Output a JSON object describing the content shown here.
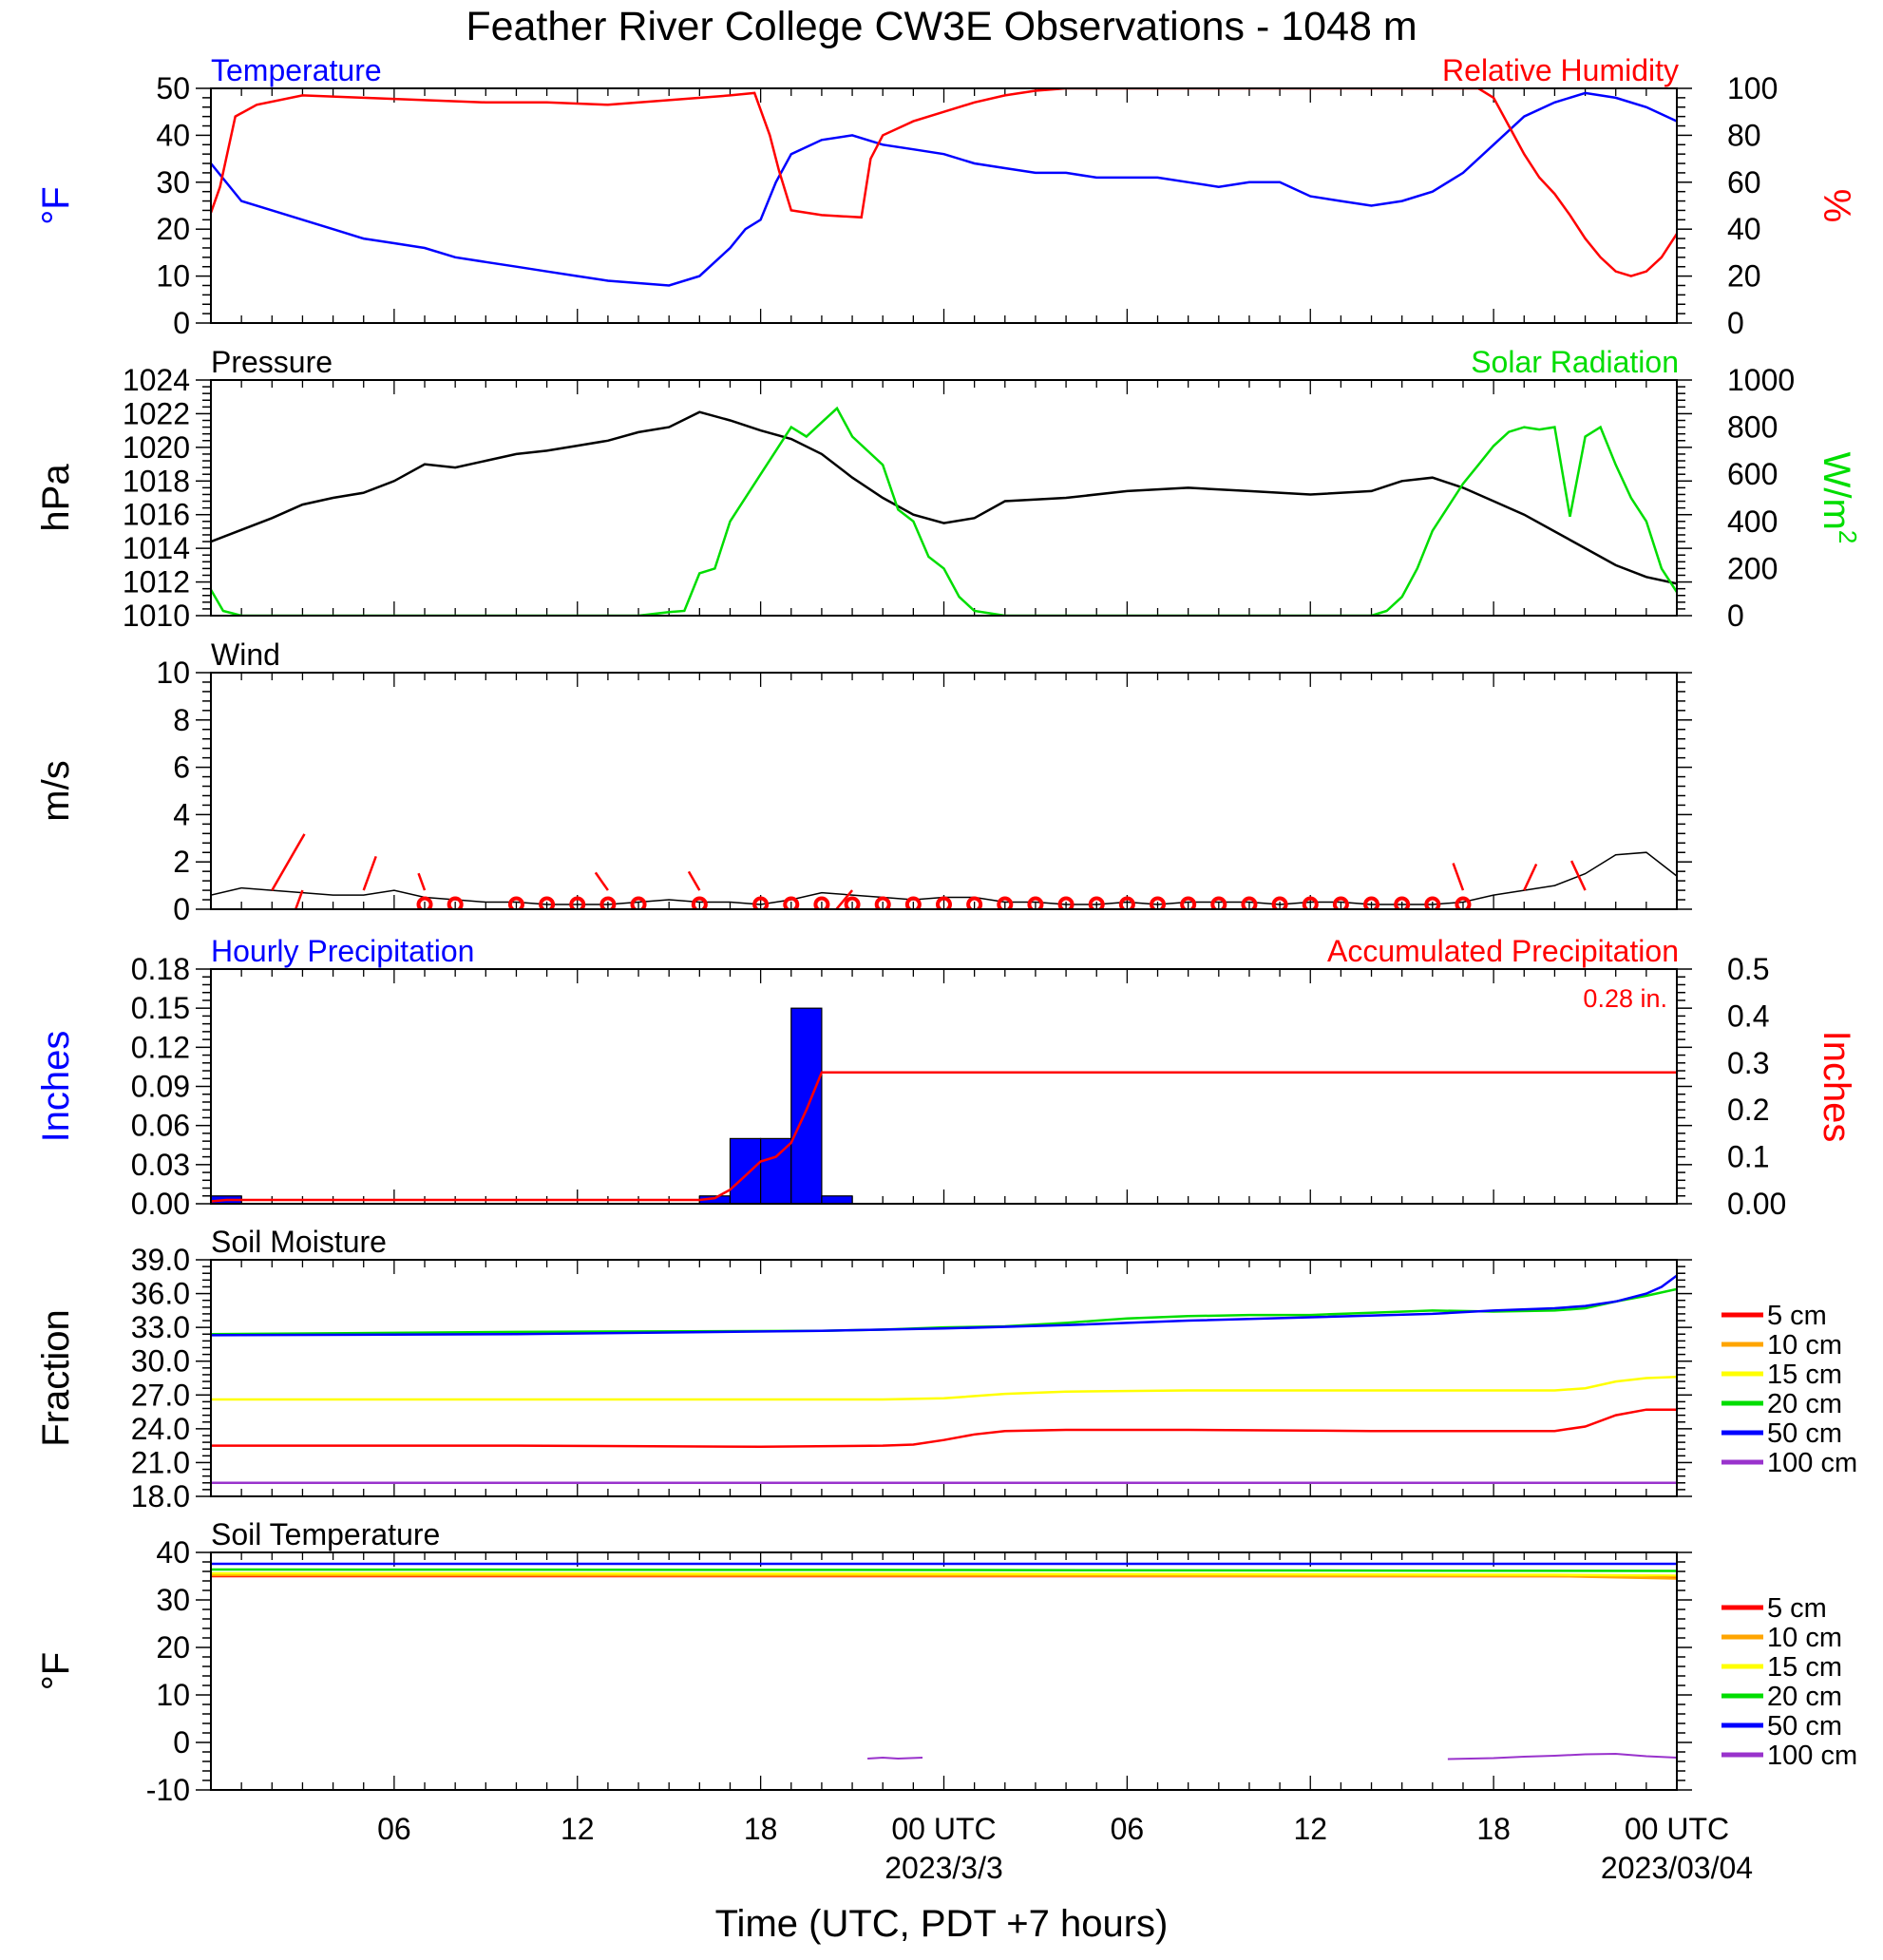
{
  "title": "Feather River College CW3E Observations - 1048 m",
  "xlabel": "Time (UTC, PDT +7 hours)",
  "x_ticks": [
    "06",
    "12",
    "18",
    "00 UTC",
    "06",
    "12",
    "18",
    "00 UTC"
  ],
  "x_dates": [
    "2023/3/3",
    "2023/03/04"
  ],
  "colors": {
    "blue": "#0000ff",
    "red": "#ff0000",
    "green": "#00dd00",
    "black": "#000000",
    "orange": "#ffa500",
    "yellow": "#ffff00",
    "purple": "#9933cc"
  },
  "chart_data": [
    {
      "id": "temp_rh",
      "type": "line",
      "title_left": "Temperature",
      "title_right": "Relative Humidity",
      "ylabel_left": "°F",
      "ylabel_right": "%",
      "ylim_left": [
        0,
        50
      ],
      "ylim_right": [
        0,
        100
      ],
      "yticks_left": [
        "0",
        "10",
        "20",
        "30",
        "40",
        "50"
      ],
      "yticks_right": [
        "0",
        "20",
        "40",
        "60",
        "80",
        "100"
      ],
      "series": [
        {
          "name": "Temperature",
          "color": "blue",
          "axis": "left",
          "x": [
            0,
            1,
            2,
            3,
            4,
            5,
            6,
            7,
            8,
            9,
            10,
            11,
            12,
            13,
            14,
            15,
            16,
            17,
            17.5,
            18,
            18.5,
            19,
            20,
            21,
            22,
            23,
            24,
            25,
            26,
            27,
            28,
            29,
            30,
            31,
            32,
            33,
            34,
            35,
            36,
            37,
            38,
            39,
            40,
            41,
            42,
            43,
            44,
            45,
            46,
            47,
            48
          ],
          "y": [
            34,
            26,
            24,
            22,
            20,
            18,
            17,
            16,
            14,
            13,
            12,
            11,
            10,
            9,
            8.5,
            8,
            10,
            16,
            20,
            22,
            30,
            36,
            39,
            40,
            38,
            37,
            36,
            34,
            33,
            32,
            32,
            31,
            31,
            31,
            30,
            29,
            30,
            30,
            27,
            26,
            25,
            26,
            28,
            32,
            38,
            44,
            47,
            49,
            48,
            46,
            43
          ]
        },
        {
          "name": "Relative Humidity",
          "color": "red",
          "axis": "right",
          "x": [
            0,
            0.3,
            0.8,
            1.5,
            3,
            5,
            7,
            9,
            11,
            13,
            15,
            17,
            17.8,
            18.3,
            18.6,
            19,
            20,
            21.3,
            21.6,
            22,
            23,
            24,
            25,
            26,
            27,
            28,
            30,
            34,
            38,
            41.5,
            42,
            42.5,
            43,
            43.5,
            44,
            44.5,
            45,
            45.5,
            46,
            46.5,
            47,
            47.5,
            48
          ],
          "y": [
            47,
            58,
            88,
            93,
            97,
            96,
            95,
            94,
            94,
            93,
            95,
            97,
            98,
            80,
            65,
            48,
            46,
            45,
            70,
            80,
            86,
            90,
            94,
            97,
            99,
            100,
            100,
            100,
            100,
            100,
            96,
            84,
            72,
            62,
            55,
            46,
            36,
            28,
            22,
            20,
            22,
            28,
            38
          ]
        }
      ]
    },
    {
      "id": "pressure_solar",
      "type": "line",
      "title_left": "Pressure",
      "title_right": "Solar Radiation",
      "ylabel_left": "hPa",
      "ylabel_right": "W/m",
      "ylabel_right_sup": "2",
      "ylim_left": [
        1010,
        1024
      ],
      "ylim_right": [
        0,
        1000
      ],
      "yticks_left": [
        "1010",
        "1012",
        "1014",
        "1016",
        "1018",
        "1020",
        "1022",
        "1024"
      ],
      "yticks_right": [
        "0",
        "200",
        "400",
        "600",
        "800",
        "1000"
      ],
      "series": [
        {
          "name": "Pressure",
          "color": "black",
          "axis": "left",
          "x": [
            0,
            2,
            3,
            4,
            5,
            6,
            7,
            8,
            9,
            10,
            11,
            12,
            13,
            14,
            15,
            16,
            17,
            18,
            19,
            20,
            21,
            22,
            23,
            24,
            25,
            26,
            28,
            30,
            32,
            34,
            36,
            38,
            39,
            40,
            41,
            42,
            43,
            44,
            45,
            46,
            47,
            48
          ],
          "y": [
            1014.4,
            1015.8,
            1016.6,
            1017.0,
            1017.3,
            1018.0,
            1019.0,
            1018.8,
            1019.2,
            1019.6,
            1019.8,
            1020.1,
            1020.4,
            1020.9,
            1021.2,
            1022.1,
            1021.6,
            1021.0,
            1020.5,
            1019.6,
            1018.2,
            1017.0,
            1016.0,
            1015.5,
            1015.8,
            1016.8,
            1017.0,
            1017.4,
            1017.6,
            1017.4,
            1017.2,
            1017.4,
            1018.0,
            1018.2,
            1017.6,
            1016.8,
            1016.0,
            1015.0,
            1014.0,
            1013.0,
            1012.3,
            1011.9
          ]
        },
        {
          "name": "Solar Radiation",
          "color": "green",
          "axis": "right",
          "x": [
            0,
            0.4,
            1,
            14,
            15,
            15.5,
            16,
            16.5,
            17,
            18,
            18.5,
            19,
            19.5,
            20,
            20.5,
            21,
            22,
            22.5,
            23,
            23.5,
            24,
            24.5,
            25,
            26,
            38,
            38.5,
            39,
            39.5,
            40,
            41,
            41.5,
            42,
            42.5,
            43,
            43.5,
            44,
            44.5,
            45,
            45.5,
            46,
            46.5,
            47,
            47.5,
            48
          ],
          "y": [
            110,
            20,
            0,
            0,
            15,
            20,
            180,
            200,
            400,
            600,
            700,
            800,
            760,
            820,
            880,
            760,
            640,
            450,
            400,
            250,
            200,
            80,
            20,
            0,
            0,
            20,
            80,
            200,
            360,
            560,
            640,
            720,
            780,
            800,
            790,
            800,
            420,
            760,
            800,
            640,
            500,
            400,
            200,
            100
          ]
        }
      ]
    },
    {
      "id": "wind",
      "type": "line",
      "title_left": "Wind",
      "ylabel_left": "m/s",
      "ylim_left": [
        0,
        10
      ],
      "yticks_left": [
        "0",
        "2",
        "4",
        "6",
        "8",
        "10"
      ],
      "series": [
        {
          "name": "Wind",
          "color": "black",
          "axis": "left",
          "x": [
            0,
            1,
            2,
            3,
            4,
            5,
            6,
            7,
            8,
            9,
            10,
            11,
            12,
            13,
            14,
            15,
            16,
            17,
            18,
            19,
            20,
            21,
            22,
            23,
            24,
            25,
            26,
            27,
            28,
            29,
            30,
            31,
            32,
            33,
            34,
            35,
            36,
            37,
            38,
            39,
            40,
            41,
            42,
            43,
            44,
            45,
            46,
            47,
            48
          ],
          "y": [
            0.6,
            0.9,
            0.8,
            0.7,
            0.6,
            0.6,
            0.8,
            0.5,
            0.4,
            0.3,
            0.3,
            0.2,
            0.2,
            0.2,
            0.3,
            0.4,
            0.3,
            0.3,
            0.2,
            0.4,
            0.7,
            0.6,
            0.5,
            0.4,
            0.5,
            0.5,
            0.3,
            0.3,
            0.2,
            0.2,
            0.3,
            0.2,
            0.3,
            0.3,
            0.3,
            0.2,
            0.3,
            0.3,
            0.2,
            0.2,
            0.2,
            0.3,
            0.6,
            0.8,
            1.0,
            1.5,
            2.3,
            2.4,
            1.4
          ]
        }
      ],
      "barbs": [
        {
          "x": 2.0,
          "len": 1.8,
          "dir": 60
        },
        {
          "x": 3.0,
          "len": 1.0,
          "dir": 250
        },
        {
          "x": 5.0,
          "len": 1.0,
          "dir": 70
        },
        {
          "x": 7.0,
          "len": 0.5,
          "dir": 110
        },
        {
          "x": 13.0,
          "len": 0.6,
          "dir": 125
        },
        {
          "x": 16.0,
          "len": 0.6,
          "dir": 120
        },
        {
          "x": 21.0,
          "len": 1.0,
          "dir": 230
        },
        {
          "x": 41.0,
          "len": 0.8,
          "dir": 110
        },
        {
          "x": 43.0,
          "len": 0.8,
          "dir": 65
        },
        {
          "x": 45.0,
          "len": 0.9,
          "dir": 115
        }
      ],
      "calm_markers_x": [
        7,
        8,
        10,
        11,
        12,
        13,
        14,
        16,
        18,
        19,
        20,
        21,
        22,
        23,
        24,
        25,
        26,
        27,
        28,
        29,
        30,
        31,
        32,
        33,
        34,
        35,
        36,
        37,
        38,
        39,
        40,
        41
      ]
    },
    {
      "id": "precip",
      "type": "bar",
      "title_left": "Hourly Precipitation",
      "title_right": "Accumulated Precipitation",
      "annotation": "0.28 in.",
      "ylabel_left": "Inches",
      "ylabel_right": "Inches",
      "ylim_left": [
        0,
        0.18
      ],
      "ylim_right": [
        0,
        0.5
      ],
      "yticks_left": [
        "0.00",
        "0.03",
        "0.06",
        "0.09",
        "0.12",
        "0.15",
        "0.18"
      ],
      "yticks_right": [
        "0.00",
        "0.1",
        "0.2",
        "0.3",
        "0.4",
        "0.5"
      ],
      "hourly": {
        "x_start": [
          0,
          16,
          17,
          18,
          19,
          20
        ],
        "values": [
          0.006,
          0.006,
          0.05,
          0.05,
          0.15,
          0.006
        ]
      },
      "accumulated": {
        "x": [
          0,
          0.5,
          1,
          16,
          16.5,
          17,
          17.5,
          18,
          18.5,
          19,
          19.5,
          20,
          48
        ],
        "y": [
          0.005,
          0.008,
          0.008,
          0.008,
          0.012,
          0.03,
          0.06,
          0.09,
          0.1,
          0.13,
          0.2,
          0.28,
          0.28
        ]
      }
    },
    {
      "id": "soil_moisture",
      "type": "line",
      "title_left": "Soil Moisture",
      "ylabel_left": "Fraction",
      "ylim_left": [
        18,
        39
      ],
      "yticks_left": [
        "18.0",
        "21.0",
        "24.0",
        "27.0",
        "30.0",
        "33.0",
        "36.0",
        "39.0"
      ],
      "legend": [
        "5 cm",
        "10 cm",
        "15 cm",
        "20 cm",
        "50 cm",
        "100 cm"
      ],
      "series": [
        {
          "name": "5 cm",
          "color": "red",
          "x": [
            0,
            10,
            18,
            22,
            23,
            24,
            25,
            26,
            28,
            32,
            38,
            44,
            45,
            46,
            47,
            48
          ],
          "y": [
            22.5,
            22.5,
            22.4,
            22.5,
            22.6,
            23.0,
            23.5,
            23.8,
            23.9,
            23.9,
            23.8,
            23.8,
            24.2,
            25.2,
            25.7,
            25.7
          ]
        },
        {
          "name": "10 cm",
          "color": "orange",
          "x": [
            0,
            48
          ],
          "y": [
            null,
            null
          ]
        },
        {
          "name": "15 cm",
          "color": "yellow",
          "x": [
            0,
            10,
            20,
            22,
            24,
            26,
            28,
            32,
            38,
            44,
            45,
            46,
            47,
            48
          ],
          "y": [
            26.6,
            26.6,
            26.6,
            26.6,
            26.7,
            27.1,
            27.3,
            27.4,
            27.4,
            27.4,
            27.6,
            28.2,
            28.5,
            28.6
          ]
        },
        {
          "name": "20 cm",
          "color": "green",
          "x": [
            0,
            10,
            20,
            22,
            24,
            26,
            28,
            30,
            32,
            34,
            36,
            38,
            40,
            42,
            44,
            45,
            46,
            47,
            48
          ],
          "y": [
            32.4,
            32.6,
            32.7,
            32.8,
            33.0,
            33.1,
            33.4,
            33.8,
            34.0,
            34.1,
            34.1,
            34.3,
            34.5,
            34.4,
            34.5,
            34.7,
            35.3,
            35.8,
            36.4
          ]
        },
        {
          "name": "50 cm",
          "color": "blue",
          "x": [
            0,
            10,
            20,
            24,
            28,
            32,
            36,
            40,
            42,
            44,
            45,
            46,
            47,
            47.5,
            48
          ],
          "y": [
            32.3,
            32.4,
            32.7,
            32.9,
            33.2,
            33.6,
            33.9,
            34.2,
            34.5,
            34.7,
            34.9,
            35.3,
            36.0,
            36.6,
            37.6
          ]
        },
        {
          "name": "100 cm",
          "color": "purple",
          "x": [
            0,
            20,
            24,
            28,
            32,
            40,
            48
          ],
          "y": [
            19.2,
            19.2,
            19.2,
            19.2,
            19.2,
            19.2,
            19.2
          ]
        }
      ]
    },
    {
      "id": "soil_temperature",
      "type": "line",
      "title_left": "Soil Temperature",
      "ylabel_left": "°F",
      "ylim_left": [
        -10,
        40
      ],
      "yticks_left": [
        "-10",
        "0",
        "10",
        "20",
        "30",
        "40"
      ],
      "legend": [
        "5 cm",
        "10 cm",
        "15 cm",
        "20 cm",
        "50 cm",
        "100 cm"
      ],
      "series": [
        {
          "name": "5 cm",
          "color": "red",
          "x": [
            0,
            24,
            44,
            48
          ],
          "y": [
            35.0,
            35.0,
            35.0,
            34.8
          ]
        },
        {
          "name": "10 cm",
          "color": "orange",
          "x": [
            0,
            24,
            44,
            48
          ],
          "y": [
            35.2,
            35.1,
            35.0,
            34.5
          ]
        },
        {
          "name": "15 cm",
          "color": "yellow",
          "x": [
            0,
            24,
            44,
            48
          ],
          "y": [
            35.6,
            35.5,
            35.3,
            35.1
          ]
        },
        {
          "name": "20 cm",
          "color": "green",
          "x": [
            0,
            24,
            48
          ],
          "y": [
            36.4,
            36.3,
            36.1
          ]
        },
        {
          "name": "50 cm",
          "color": "blue",
          "x": [
            0,
            24,
            48
          ],
          "y": [
            37.6,
            37.6,
            37.6
          ]
        },
        {
          "name": "100 cm",
          "color": "purple",
          "segments": [
            {
              "x": [
                21.5,
                22,
                22.5,
                23.3
              ],
              "y": [
                -3.4,
                -3.2,
                -3.4,
                -3.2
              ]
            },
            {
              "x": [
                40.5,
                42,
                43,
                44,
                45,
                46,
                47,
                48
              ],
              "y": [
                -3.5,
                -3.3,
                -3.0,
                -2.8,
                -2.5,
                -2.4,
                -2.9,
                -3.2
              ]
            }
          ]
        }
      ]
    }
  ]
}
